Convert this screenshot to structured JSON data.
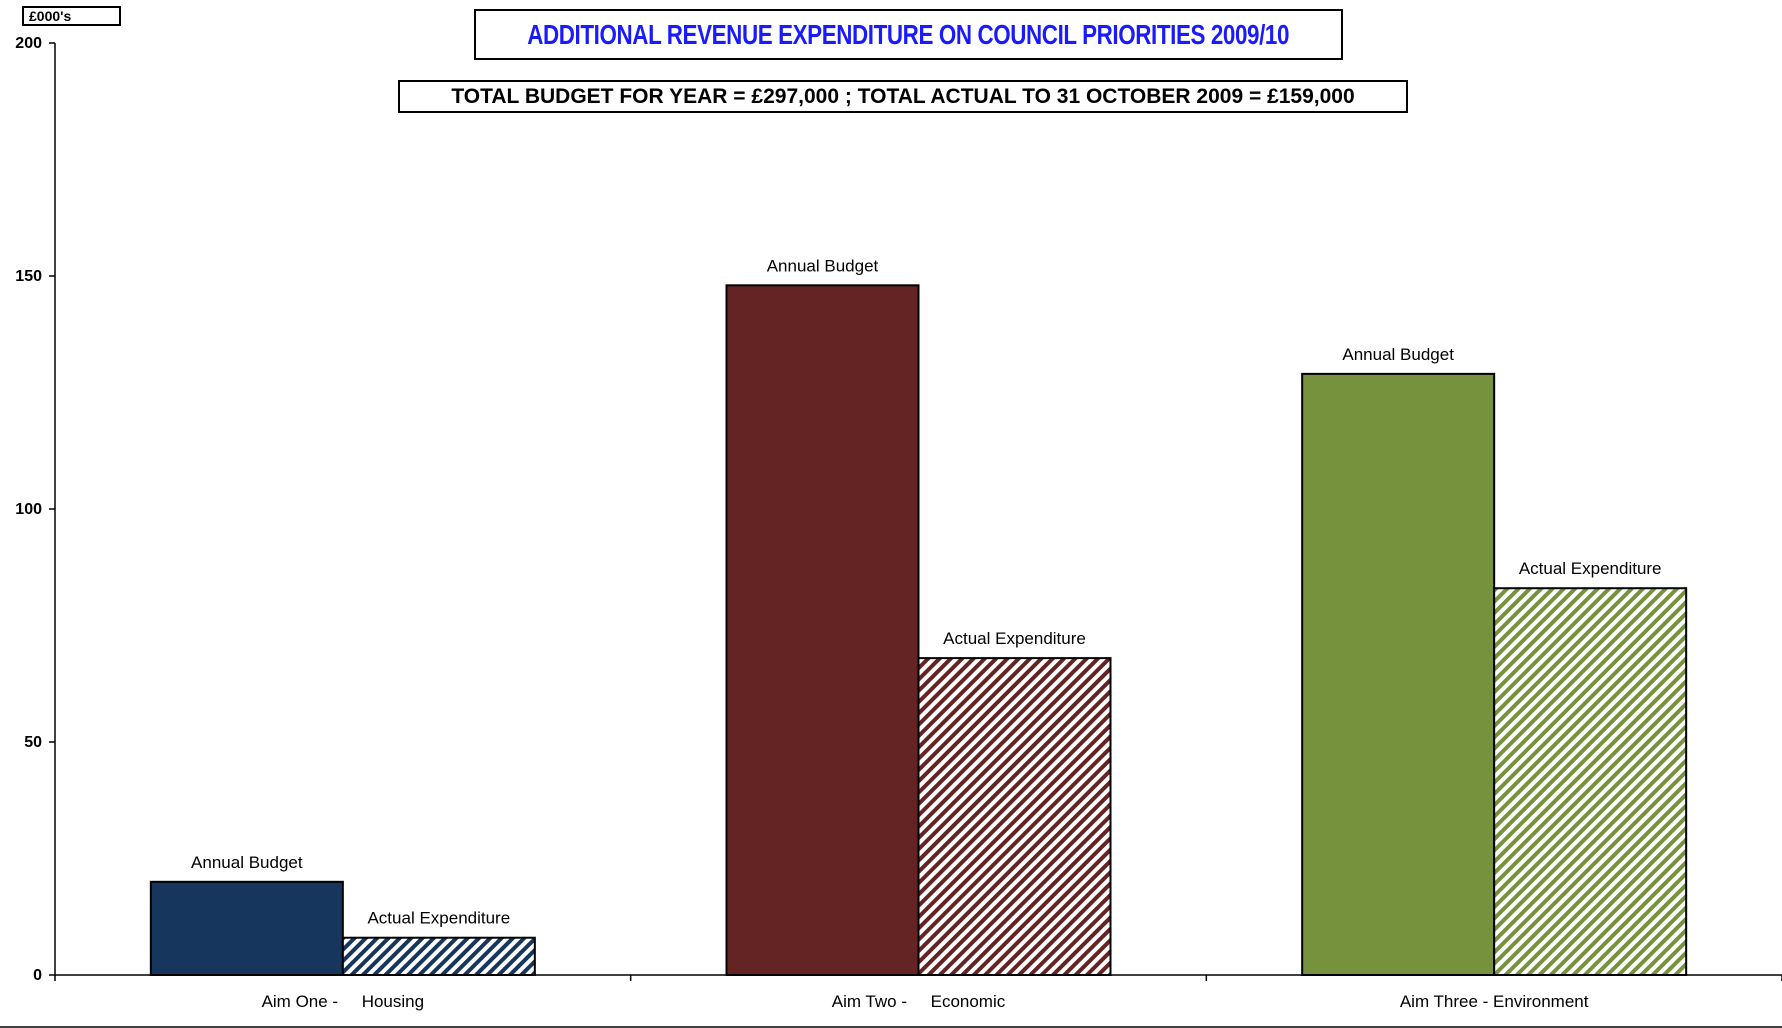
{
  "unit_label": "£000's",
  "colors": {
    "aim_one": "#17365D",
    "aim_two": "#632423",
    "aim_three": "#76923C",
    "title": "#1a1aff"
  },
  "chart_data": {
    "type": "bar",
    "title": "ADDITIONAL REVENUE EXPENDITURE ON COUNCIL PRIORITIES 2009/10",
    "subtitle": "TOTAL BUDGET FOR YEAR = £297,000 ; TOTAL ACTUAL TO 31 OCTOBER 2009 = £159,000",
    "categories": [
      "Aim One -     Housing",
      "Aim Two -     Economic",
      "Aim Three - Environment"
    ],
    "series": [
      {
        "name": "Annual Budget",
        "values": [
          20,
          148,
          129
        ],
        "pattern": "solid"
      },
      {
        "name": "Actual Expenditure",
        "values": [
          8,
          68,
          83
        ],
        "pattern": "hatched"
      }
    ],
    "ylim": [
      0,
      200
    ],
    "yticks": [
      0,
      50,
      100,
      150,
      200
    ],
    "grid": false
  }
}
